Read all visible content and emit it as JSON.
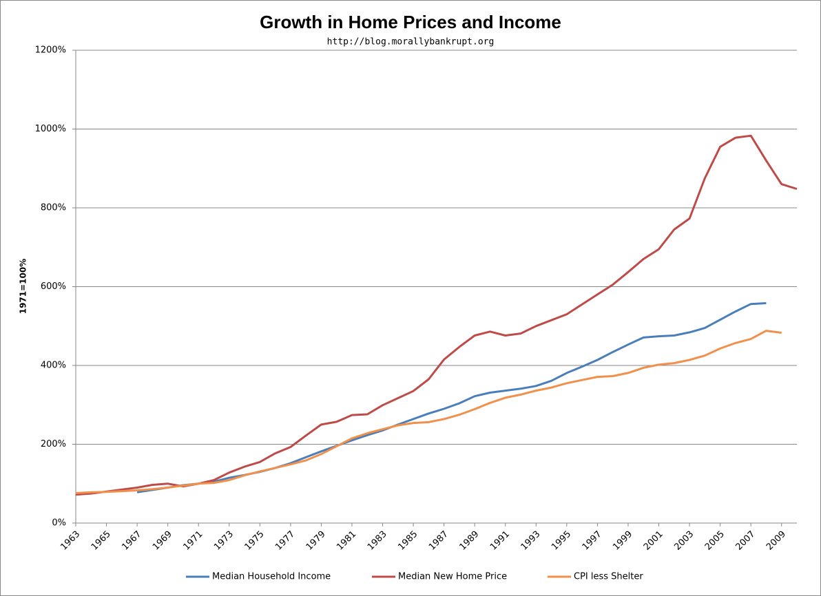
{
  "chart_data": {
    "type": "line",
    "title": "Growth in Home Prices and Income",
    "subtitle": "http://blog.morallybankrupt.org",
    "y_label": "1971=100%",
    "x": [
      1963,
      1964,
      1965,
      1966,
      1967,
      1968,
      1969,
      1970,
      1971,
      1972,
      1973,
      1974,
      1975,
      1976,
      1977,
      1978,
      1979,
      1980,
      1981,
      1982,
      1983,
      1984,
      1985,
      1986,
      1987,
      1988,
      1989,
      1990,
      1991,
      1992,
      1993,
      1994,
      1995,
      1996,
      1997,
      1998,
      1999,
      2000,
      2001,
      2002,
      2003,
      2004,
      2005,
      2006,
      2007,
      2008,
      2009,
      2010
    ],
    "series": [
      {
        "name": "Median Household Income",
        "color": "#4a7ebb",
        "values": [
          null,
          null,
          null,
          null,
          78,
          84,
          90,
          96,
          100,
          105,
          115,
          122,
          130,
          140,
          152,
          167,
          182,
          196,
          210,
          223,
          235,
          250,
          264,
          278,
          290,
          304,
          322,
          331,
          336,
          341,
          348,
          361,
          381,
          397,
          414,
          434,
          453,
          471,
          474,
          476,
          484,
          495,
          516,
          537,
          556,
          558,
          null,
          null
        ]
      },
      {
        "name": "Median New Home Price",
        "color": "#be4b48",
        "values": [
          72,
          75,
          80,
          85,
          90,
          97,
          100,
          93,
          100,
          109,
          128,
          143,
          155,
          177,
          193,
          222,
          250,
          257,
          274,
          276,
          299,
          317,
          335,
          365,
          415,
          447,
          476,
          486,
          476,
          481,
          500,
          515,
          530,
          555,
          580,
          605,
          637,
          670,
          695,
          745,
          773,
          875,
          955,
          978,
          983,
          920,
          860,
          848
        ]
      },
      {
        "name": "CPI less Shelter",
        "color": "#f0904a",
        "values": [
          76,
          78,
          79,
          81,
          83,
          86,
          90,
          95,
          100,
          102,
          109,
          121,
          131,
          140,
          149,
          159,
          175,
          195,
          215,
          228,
          238,
          248,
          254,
          256,
          264,
          275,
          289,
          305,
          318,
          326,
          336,
          344,
          355,
          363,
          371,
          373,
          381,
          394,
          402,
          406,
          414,
          425,
          443,
          457,
          467,
          488,
          483,
          null
        ]
      }
    ],
    "xlim": [
      1963,
      2010
    ],
    "xticks": [
      1963,
      1965,
      1967,
      1969,
      1971,
      1973,
      1975,
      1977,
      1979,
      1981,
      1983,
      1985,
      1987,
      1989,
      1991,
      1993,
      1995,
      1997,
      1999,
      2001,
      2003,
      2005,
      2007,
      2009
    ],
    "ylim": [
      0,
      1200
    ],
    "yticks": [
      {
        "value": 0,
        "label": "0%"
      },
      {
        "value": 200,
        "label": "200%"
      },
      {
        "value": 400,
        "label": "400%"
      },
      {
        "value": 600,
        "label": "600%"
      },
      {
        "value": 800,
        "label": "800%"
      },
      {
        "value": 1000,
        "label": "1000%"
      },
      {
        "value": 1200,
        "label": "1200%"
      }
    ],
    "grid": true,
    "legend": "bottom"
  }
}
